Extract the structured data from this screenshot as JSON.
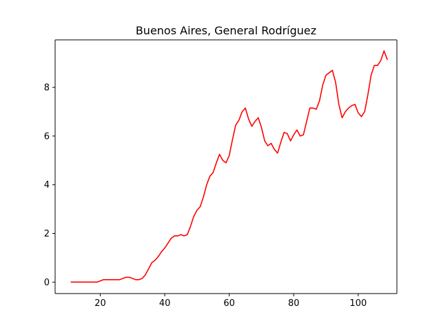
{
  "chart_data": {
    "type": "line",
    "title": "Buenos Aires, General Rodríguez",
    "xlabel": "",
    "ylabel": "",
    "xlim": [
      6,
      112
    ],
    "ylim": [
      -0.47,
      9.95
    ],
    "xticks": [
      20,
      40,
      60,
      80,
      100
    ],
    "yticks": [
      0,
      2,
      4,
      6,
      8
    ],
    "grid": false,
    "legend": "none",
    "series": [
      {
        "color": "#ff0000",
        "x": [
          11,
          12,
          13,
          14,
          15,
          16,
          17,
          18,
          19,
          20,
          21,
          22,
          23,
          24,
          25,
          26,
          27,
          28,
          29,
          30,
          31,
          32,
          33,
          34,
          35,
          36,
          37,
          38,
          39,
          40,
          41,
          42,
          43,
          44,
          45,
          46,
          47,
          48,
          49,
          50,
          51,
          52,
          53,
          54,
          55,
          56,
          57,
          58,
          59,
          60,
          61,
          62,
          63,
          64,
          65,
          66,
          67,
          68,
          69,
          70,
          71,
          72,
          73,
          74,
          75,
          76,
          77,
          78,
          79,
          80,
          81,
          82,
          83,
          84,
          85,
          86,
          87,
          88,
          89,
          90,
          91,
          92,
          93,
          94,
          95,
          96,
          97,
          98,
          99,
          100,
          101,
          102,
          103,
          104,
          105,
          106,
          107,
          108,
          109
        ],
        "y": [
          0,
          0,
          0,
          0,
          0,
          0,
          0,
          0,
          0,
          0.05,
          0.1,
          0.1,
          0.1,
          0.1,
          0.1,
          0.1,
          0.15,
          0.2,
          0.2,
          0.15,
          0.1,
          0.1,
          0.15,
          0.3,
          0.55,
          0.8,
          0.9,
          1.05,
          1.25,
          1.4,
          1.6,
          1.8,
          1.9,
          1.9,
          1.95,
          1.9,
          1.95,
          2.3,
          2.7,
          2.95,
          3.1,
          3.5,
          4.0,
          4.35,
          4.5,
          4.9,
          5.25,
          5.0,
          4.9,
          5.2,
          5.85,
          6.45,
          6.65,
          7.0,
          7.15,
          6.7,
          6.4,
          6.6,
          6.75,
          6.35,
          5.8,
          5.6,
          5.7,
          5.45,
          5.3,
          5.75,
          6.15,
          6.1,
          5.8,
          6.05,
          6.25,
          6.0,
          6.05,
          6.6,
          7.15,
          7.15,
          7.1,
          7.45,
          8.1,
          8.5,
          8.6,
          8.7,
          8.2,
          7.3,
          6.75,
          7.0,
          7.15,
          7.25,
          7.3,
          6.95,
          6.8,
          7.0,
          7.7,
          8.5,
          8.9,
          8.9,
          9.1,
          9.5,
          9.15
        ]
      }
    ]
  }
}
